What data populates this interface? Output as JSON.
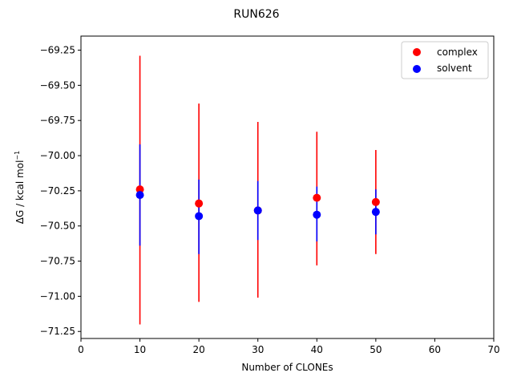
{
  "chart_data": {
    "type": "scatter",
    "title": "RUN626",
    "xlabel": "Number of CLONEs",
    "ylabel": "ΔG / kcal mol",
    "ylabel_superscript": "−1",
    "xlim": [
      0,
      70
    ],
    "ylim": [
      -71.3,
      -69.15
    ],
    "xticks": [
      0,
      10,
      20,
      30,
      40,
      50,
      60,
      70
    ],
    "xtick_labels": [
      "0",
      "10",
      "20",
      "30",
      "40",
      "50",
      "60",
      "70"
    ],
    "yticks": [
      -71.25,
      -71.0,
      -70.75,
      -70.5,
      -70.25,
      -70.0,
      -69.75,
      -69.5,
      -69.25
    ],
    "ytick_labels": [
      "−71.25",
      "−71.00",
      "−70.75",
      "−70.50",
      "−70.25",
      "−70.00",
      "−69.75",
      "−69.50",
      "−69.25"
    ],
    "grid": false,
    "legend_position": "top-right",
    "series": [
      {
        "name": "complex",
        "color": "#ff0000",
        "x": [
          10,
          20,
          30,
          40,
          50
        ],
        "y": [
          -70.24,
          -70.34,
          -70.39,
          -70.3,
          -70.33
        ],
        "err_low": [
          -71.2,
          -71.04,
          -71.01,
          -70.78,
          -70.7
        ],
        "err_high": [
          -69.29,
          -69.63,
          -69.76,
          -69.83,
          -69.96
        ]
      },
      {
        "name": "solvent",
        "color": "#0000ff",
        "x": [
          10,
          20,
          30,
          40,
          50
        ],
        "y": [
          -70.28,
          -70.43,
          -70.39,
          -70.42,
          -70.4
        ],
        "err_low": [
          -70.64,
          -70.7,
          -70.6,
          -70.61,
          -70.56
        ],
        "err_high": [
          -69.92,
          -70.17,
          -70.18,
          -70.22,
          -70.24
        ]
      }
    ]
  }
}
